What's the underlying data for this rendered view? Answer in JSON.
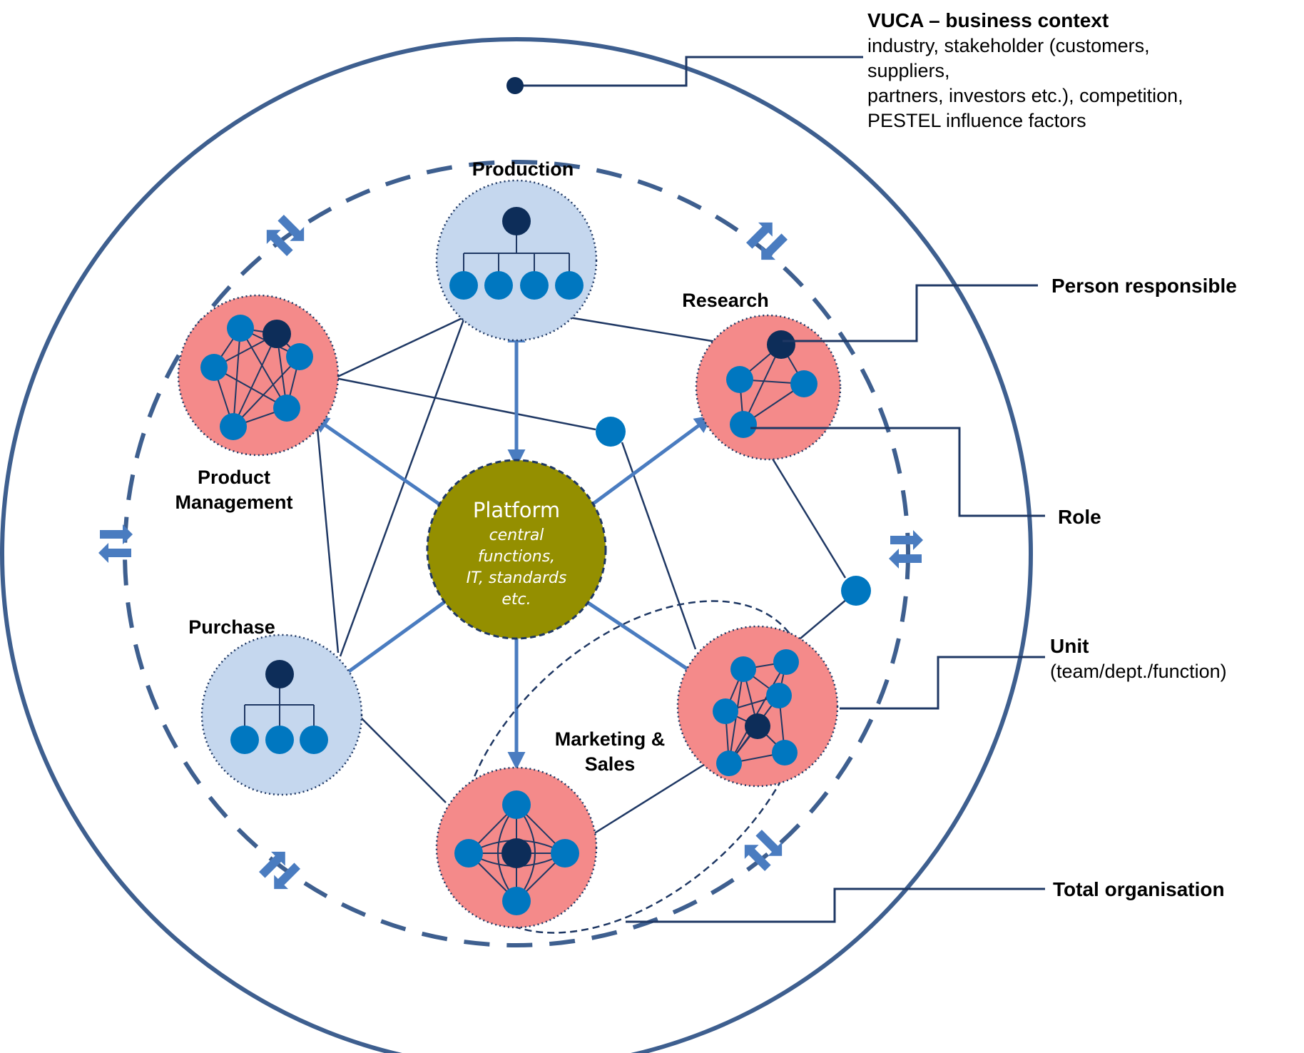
{
  "colors": {
    "outer_ring": "#3e5f8f",
    "line": "#1f3864",
    "arrow": "#4a7cc0",
    "flow_arrow": "#4a7cc0",
    "person": "#0d2d59",
    "role": "#0077c0",
    "agile_unit": "#f48a8a",
    "hier_unit": "#c5d7ee",
    "platform": "#948f00"
  },
  "legend": {
    "vuca_title": "VUCA – business context",
    "vuca_line1": "industry, stakeholder (customers,",
    "vuca_line2": "suppliers,",
    "vuca_line3": "partners, investors etc.), competition,",
    "vuca_line4": "PESTEL influence factors",
    "person_responsible": "Person responsible",
    "role": "Role",
    "unit_title": "Unit",
    "unit_sub": "(team/dept./function)",
    "total_org": "Total organisation"
  },
  "units": {
    "production": "Production",
    "research": "Research",
    "product_mgmt_line1": "Product",
    "product_mgmt_line2": "Management",
    "purchase": "Purchase",
    "marketing_line1": "Marketing &",
    "marketing_line2": "Sales"
  },
  "platform": {
    "title": "Platform",
    "line1": "central",
    "line2": "functions,",
    "line3": "IT, standards",
    "line4": "etc."
  }
}
